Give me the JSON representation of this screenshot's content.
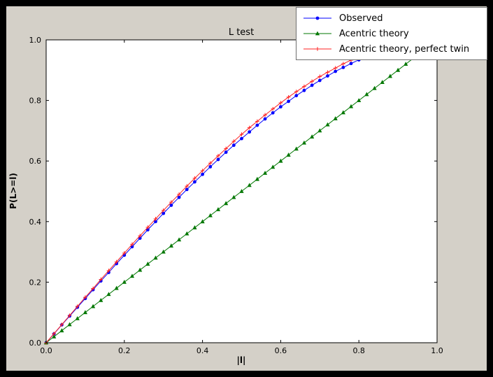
{
  "window": {
    "outer_background": "#000000",
    "frame_background": "#d4d0c8",
    "plot_background": "#ffffff"
  },
  "chart_data": {
    "type": "line",
    "title": "L test",
    "xlabel": "|l|",
    "ylabel": "P(L>=l)",
    "xlim": [
      0.0,
      1.0
    ],
    "ylim": [
      0.0,
      1.0
    ],
    "xticks": [
      0.0,
      0.2,
      0.4,
      0.6,
      0.8,
      1.0
    ],
    "yticks": [
      0.0,
      0.2,
      0.4,
      0.6,
      0.8,
      1.0
    ],
    "grid": false,
    "legend_position": "upper right",
    "series": [
      {
        "name": "Observed",
        "color": "#0000ff",
        "marker": "circle",
        "x": [
          0,
          0.02,
          0.04,
          0.06,
          0.08,
          0.1,
          0.12,
          0.14,
          0.16,
          0.18,
          0.2,
          0.22,
          0.24,
          0.26,
          0.28,
          0.3,
          0.32,
          0.34,
          0.36,
          0.38,
          0.4,
          0.42,
          0.44,
          0.46,
          0.48,
          0.5,
          0.52,
          0.54,
          0.56,
          0.58,
          0.6,
          0.62,
          0.64,
          0.66,
          0.68,
          0.7,
          0.72,
          0.74,
          0.76,
          0.78,
          0.8,
          0.82,
          0.84,
          0.86
        ],
        "y": [
          0,
          0.029,
          0.059,
          0.088,
          0.117,
          0.146,
          0.175,
          0.204,
          0.232,
          0.261,
          0.289,
          0.317,
          0.345,
          0.373,
          0.4,
          0.427,
          0.454,
          0.48,
          0.506,
          0.531,
          0.556,
          0.581,
          0.605,
          0.629,
          0.652,
          0.674,
          0.696,
          0.718,
          0.739,
          0.759,
          0.779,
          0.797,
          0.816,
          0.833,
          0.85,
          0.866,
          0.881,
          0.896,
          0.909,
          0.922,
          0.934,
          0.945,
          0.955,
          0.964
        ]
      },
      {
        "name": "Acentric theory",
        "color": "#007700",
        "marker": "triangle",
        "x": [
          0,
          0.02,
          0.04,
          0.06,
          0.08,
          0.1,
          0.12,
          0.14,
          0.16,
          0.18,
          0.2,
          0.22,
          0.24,
          0.26,
          0.28,
          0.3,
          0.32,
          0.34,
          0.36,
          0.38,
          0.4,
          0.42,
          0.44,
          0.46,
          0.48,
          0.5,
          0.52,
          0.54,
          0.56,
          0.58,
          0.6,
          0.62,
          0.64,
          0.66,
          0.68,
          0.7,
          0.72,
          0.74,
          0.76,
          0.78,
          0.8,
          0.82,
          0.84,
          0.86,
          0.88,
          0.9,
          0.92,
          0.94,
          0.96
        ],
        "y": [
          0,
          0.02,
          0.04,
          0.06,
          0.08,
          0.1,
          0.12,
          0.14,
          0.16,
          0.18,
          0.2,
          0.22,
          0.24,
          0.26,
          0.28,
          0.3,
          0.32,
          0.34,
          0.36,
          0.38,
          0.4,
          0.42,
          0.44,
          0.46,
          0.48,
          0.5,
          0.52,
          0.54,
          0.56,
          0.58,
          0.6,
          0.62,
          0.64,
          0.66,
          0.68,
          0.7,
          0.72,
          0.74,
          0.76,
          0.78,
          0.8,
          0.82,
          0.84,
          0.86,
          0.88,
          0.9,
          0.92,
          0.94,
          0.96
        ]
      },
      {
        "name": "Acentric theory, perfect twin",
        "color": "#ff2222",
        "marker": "plus",
        "x": [
          0,
          0.02,
          0.04,
          0.06,
          0.08,
          0.1,
          0.12,
          0.14,
          0.16,
          0.18,
          0.2,
          0.22,
          0.24,
          0.26,
          0.28,
          0.3,
          0.32,
          0.34,
          0.36,
          0.38,
          0.4,
          0.42,
          0.44,
          0.46,
          0.48,
          0.5,
          0.52,
          0.54,
          0.56,
          0.58,
          0.6,
          0.62,
          0.64,
          0.66,
          0.68,
          0.7,
          0.72,
          0.74,
          0.76,
          0.78,
          0.8,
          0.82,
          0.84
        ],
        "y": [
          0,
          0.03,
          0.06,
          0.09,
          0.12,
          0.15,
          0.179,
          0.209,
          0.238,
          0.267,
          0.296,
          0.325,
          0.353,
          0.381,
          0.409,
          0.437,
          0.464,
          0.49,
          0.517,
          0.543,
          0.568,
          0.593,
          0.617,
          0.641,
          0.665,
          0.688,
          0.71,
          0.731,
          0.752,
          0.772,
          0.792,
          0.811,
          0.829,
          0.846,
          0.863,
          0.879,
          0.893,
          0.907,
          0.921,
          0.933,
          0.944,
          0.954,
          0.964
        ]
      }
    ]
  }
}
